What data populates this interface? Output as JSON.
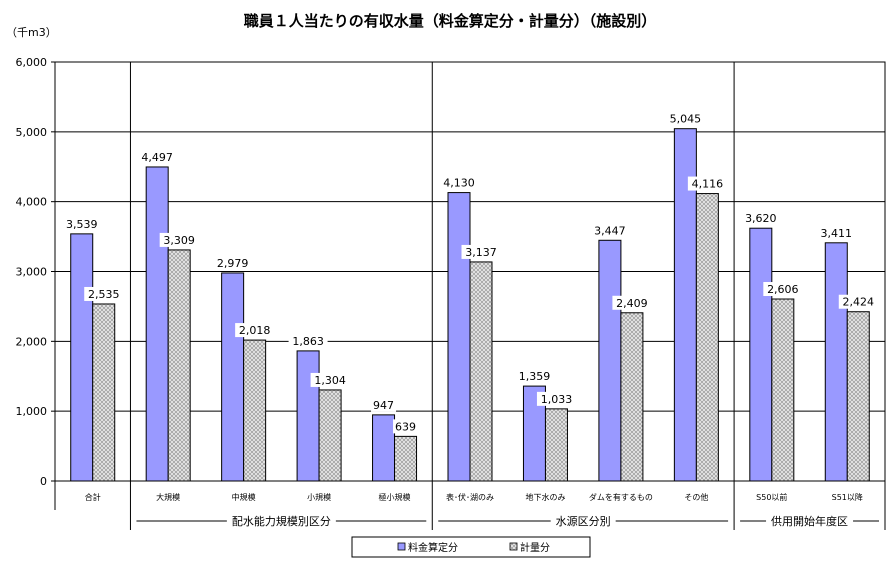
{
  "chart_data": {
    "type": "bar",
    "title": "職員１人当たりの有収水量（料金算定分・計量分）（施設別）",
    "ylabel": "（千m3）",
    "ylim": [
      0,
      6000
    ],
    "yticks": [
      "0",
      "1,000",
      "2,000",
      "3,000",
      "4,000",
      "5,000",
      "6,000"
    ],
    "grid": true,
    "legend_position": "bottom",
    "categories": [
      "合計",
      "大規模",
      "中規模",
      "小規模",
      "極小規模",
      "表･伏･湖のみ",
      "地下水のみ",
      "ダムを有するもの",
      "その他",
      "S50以前",
      "S51以降"
    ],
    "groups": [
      {
        "label": "配水能力規模別区分",
        "from": 1,
        "to": 4
      },
      {
        "label": "水源区分別",
        "from": 5,
        "to": 8
      },
      {
        "label": "供用開始年度区",
        "from": 9,
        "to": 10
      }
    ],
    "series": [
      {
        "name": "料金算定分",
        "color": "#9999ff",
        "values": [
          3539,
          4497,
          2979,
          1863,
          947,
          4130,
          1359,
          3447,
          5045,
          3620,
          3411
        ],
        "labels": [
          "3,539",
          "4,497",
          "2,979",
          "1,863",
          "947",
          "4,130",
          "1,359",
          "3,447",
          "5,045",
          "3,620",
          "3,411"
        ]
      },
      {
        "name": "計量分",
        "color": "#d9d9d9",
        "values": [
          2535,
          3309,
          2018,
          1304,
          639,
          3137,
          1033,
          2409,
          4116,
          2606,
          2424
        ],
        "labels": [
          "2,535",
          "3,309",
          "2,018",
          "1,304",
          "639",
          "3,137",
          "1,033",
          "2,409",
          "4,116",
          "2,606",
          "2,424"
        ]
      }
    ]
  }
}
